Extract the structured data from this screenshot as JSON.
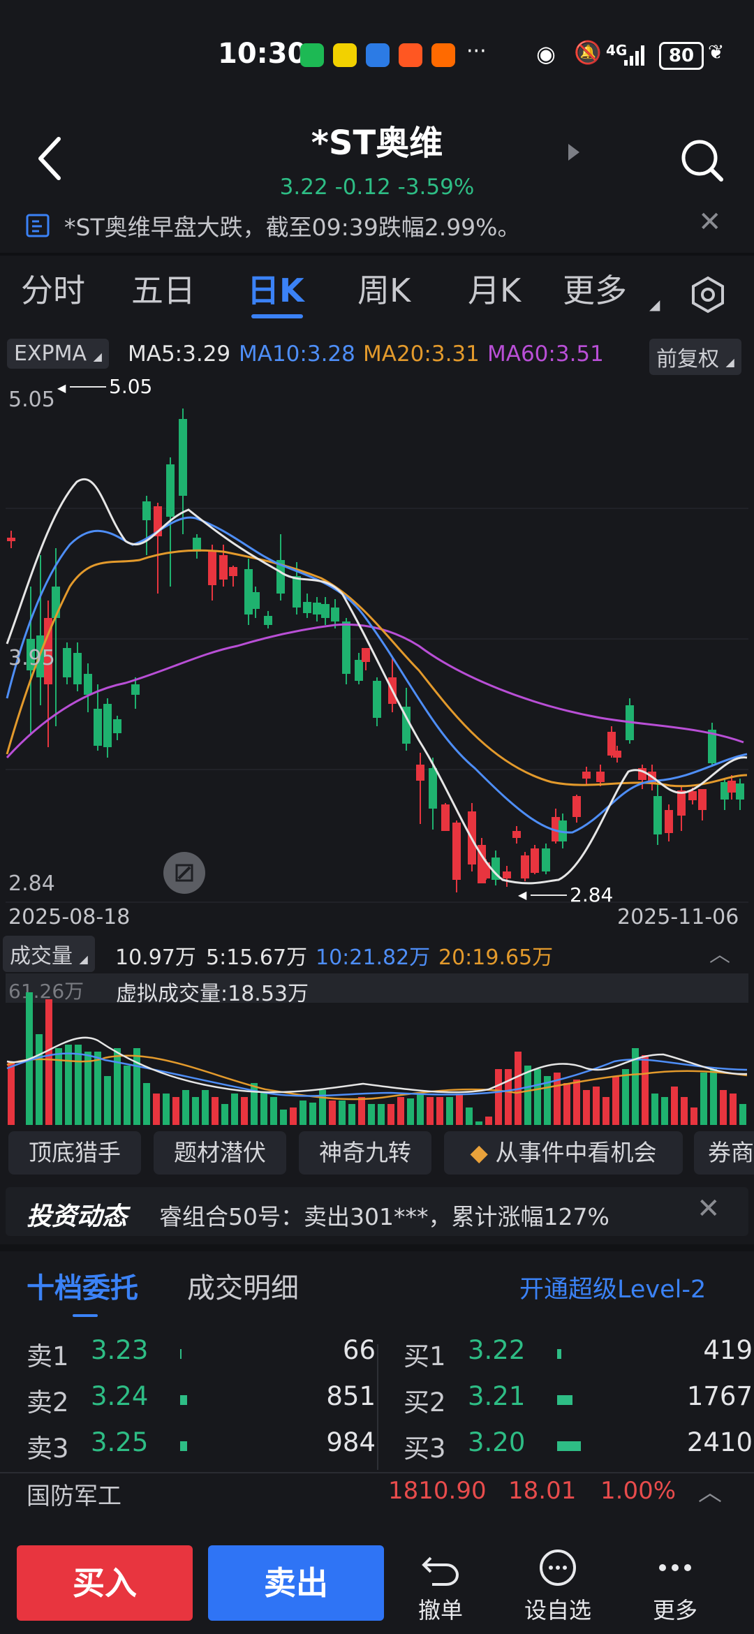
{
  "status": {
    "time": "10:30",
    "network": "4G",
    "battery": "80"
  },
  "header": {
    "title": "*ST奥维",
    "price": "3.22",
    "change": "-0.12",
    "change_pct": "-3.59%"
  },
  "news_banner": "*ST奥维早盘大跌，截至09:39跌幅2.99%。",
  "tabs": [
    "分时",
    "五日",
    "日K",
    "周K",
    "月K",
    "更多"
  ],
  "ma": {
    "indicator": "EXPMA",
    "ma5": "MA5:3.29",
    "ma10": "MA10:3.28",
    "ma20": "MA20:3.31",
    "ma60": "MA60:3.51",
    "adjust": "前复权",
    "colors": {
      "ma5": "#e6e6e6",
      "ma10": "#4e8ef7",
      "ma20": "#e39a2c",
      "ma60": "#b94fd6"
    }
  },
  "kline": {
    "price_top": "5.05",
    "price_mid": "3.95",
    "price_bottom": "2.84",
    "high_mark": "5.05",
    "low_mark": "2.84",
    "date_start": "2025-08-18",
    "date_end": "2025-11-06"
  },
  "volume": {
    "label": "成交量",
    "vol": "10.97万",
    "ma5": "5:15.67万",
    "ma10": "10:21.82万",
    "ma20": "20:19.65万",
    "max": "61.26万",
    "virtual": "虚拟成交量:18.53万"
  },
  "tools": [
    "顶底猎手",
    "题材潜伏",
    "神奇九转",
    "从事件中看机会",
    "券商"
  ],
  "invest": {
    "label": "投资动态",
    "text": "睿组合50号：卖出301***，累计涨幅127%"
  },
  "book": {
    "tab_active": "十档委托",
    "tab_other": "成交明细",
    "level2": "开通超级Level-2",
    "sell": [
      {
        "label": "卖1",
        "price": "3.23",
        "qty": "66"
      },
      {
        "label": "卖2",
        "price": "3.24",
        "qty": "851"
      },
      {
        "label": "卖3",
        "price": "3.25",
        "qty": "984"
      }
    ],
    "buy": [
      {
        "label": "买1",
        "price": "3.22",
        "qty": "419"
      },
      {
        "label": "买2",
        "price": "3.21",
        "qty": "1767"
      },
      {
        "label": "买3",
        "price": "3.20",
        "qty": "2410"
      }
    ]
  },
  "sector": {
    "name": "国防军工",
    "value": "1810.90",
    "change": "18.01",
    "pct": "1.00%"
  },
  "bottom": {
    "buy": "买入",
    "sell": "卖出",
    "cancel": "撤单",
    "watch": "设自选",
    "more": "更多"
  }
}
